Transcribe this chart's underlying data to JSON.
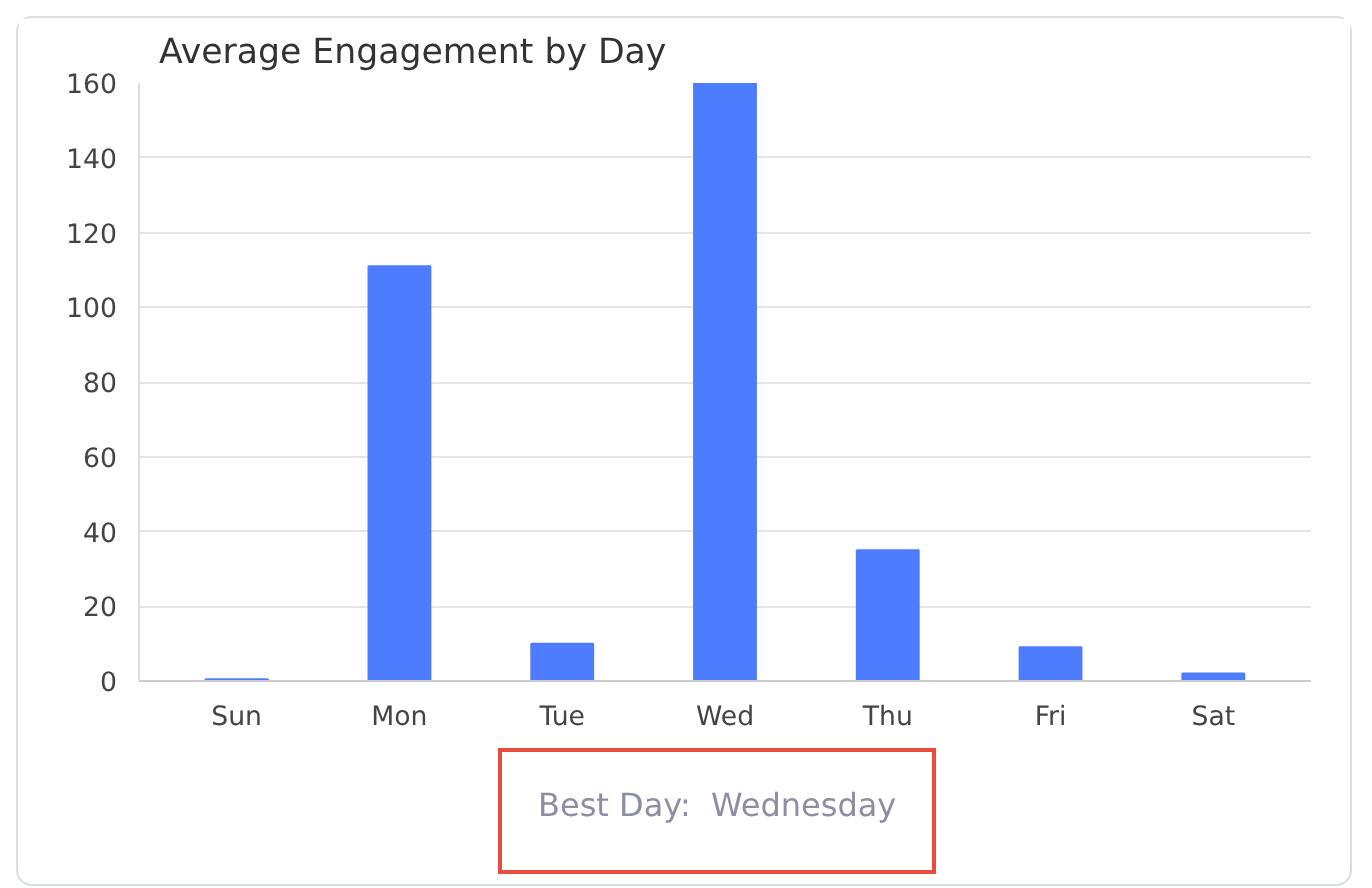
{
  "chart_data": {
    "type": "bar",
    "title": "Average Engagement by Day",
    "categories": [
      "Sun",
      "Mon",
      "Tue",
      "Wed",
      "Thu",
      "Fri",
      "Sat"
    ],
    "values": [
      0.5,
      111,
      10,
      160,
      35,
      9,
      2
    ],
    "color": "#4d7cfe",
    "ylim": [
      0,
      160
    ],
    "yticks": [
      0,
      20,
      40,
      60,
      80,
      100,
      120,
      140,
      160
    ],
    "grid": "y",
    "annotations": [
      "Best Day:  Wednesday"
    ]
  }
}
